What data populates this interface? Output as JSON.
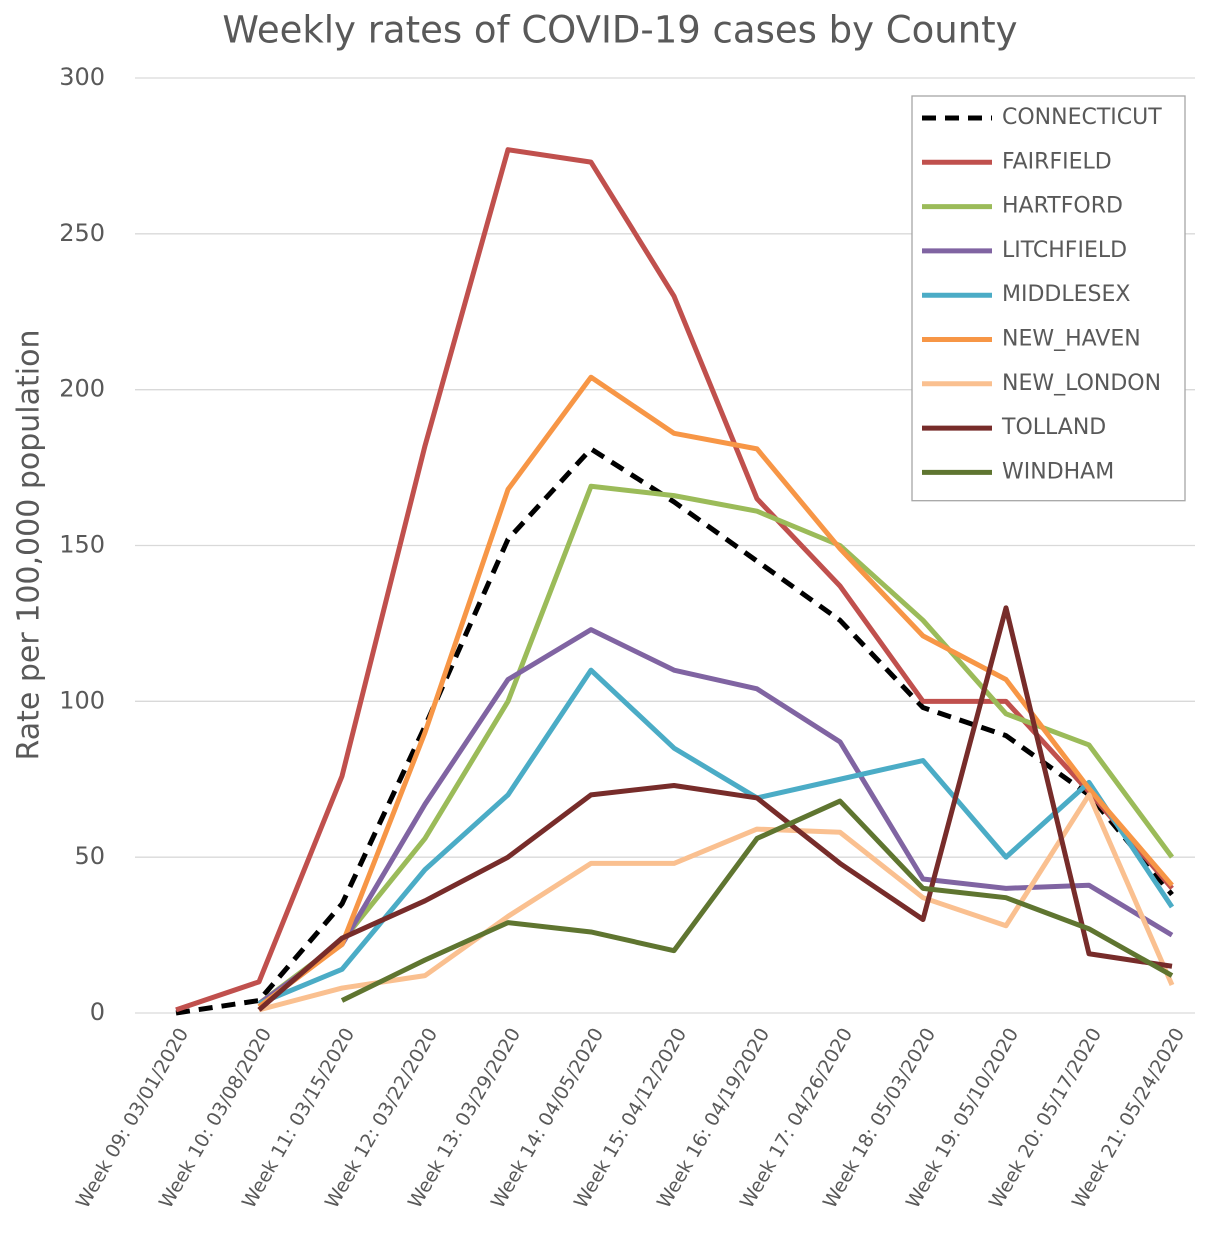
{
  "chart_data": {
    "type": "line",
    "title": "Weekly rates of COVID-19 cases by County",
    "y_label": "Rate per 100,000 population",
    "categories": [
      "Week 09: 03/01/2020",
      "Week 10: 03/08/2020",
      "Week 11: 03/15/2020",
      "Week 12: 03/22/2020",
      "Week 13: 03/29/2020",
      "Week 14: 04/05/2020",
      "Week 15: 04/12/2020",
      "Week 16: 04/19/2020",
      "Week 17: 04/26/2020",
      "Week 18: 05/03/2020",
      "Week 19: 05/10/2020",
      "Week 20: 05/17/2020",
      "Week 21: 05/24/2020"
    ],
    "series": [
      {
        "name": "CONNECTICUT",
        "color": "#000000",
        "dash": true,
        "values": [
          0,
          4,
          35,
          92,
          152,
          181,
          164,
          145,
          126,
          98,
          89,
          70,
          38
        ]
      },
      {
        "name": "FAIRFIELD",
        "color": "#c0504d",
        "values": [
          1,
          10,
          76,
          182,
          277,
          273,
          230,
          165,
          137,
          100,
          100,
          71,
          40
        ]
      },
      {
        "name": "HARTFORD",
        "color": "#9bbb59",
        "values": [
          null,
          3,
          23,
          56,
          100,
          169,
          166,
          161,
          150,
          126,
          96,
          86,
          50
        ]
      },
      {
        "name": "LITCHFIELD",
        "color": "#8064a2",
        "values": [
          null,
          3,
          22,
          67,
          107,
          123,
          110,
          104,
          87,
          43,
          40,
          41,
          25
        ]
      },
      {
        "name": "MIDDLESEX",
        "color": "#4bacc6",
        "values": [
          null,
          3,
          14,
          46,
          70,
          110,
          85,
          69,
          75,
          81,
          50,
          74,
          34
        ]
      },
      {
        "name": "NEW_HAVEN",
        "color": "#f79646",
        "values": [
          null,
          2,
          22,
          90,
          168,
          204,
          186,
          181,
          149,
          121,
          107,
          72,
          41
        ]
      },
      {
        "name": "NEW_LONDON",
        "color": "#fac090",
        "values": [
          null,
          1,
          8,
          12,
          31,
          48,
          48,
          59,
          58,
          37,
          28,
          70,
          9
        ]
      },
      {
        "name": "TOLLAND",
        "color": "#772c2a",
        "values": [
          null,
          1,
          24,
          36,
          50,
          70,
          73,
          69,
          48,
          30,
          130,
          19,
          15
        ]
      },
      {
        "name": "WINDHAM",
        "color": "#5f7530",
        "values": [
          null,
          null,
          4,
          17,
          29,
          26,
          20,
          56,
          68,
          40,
          37,
          27,
          12
        ]
      }
    ],
    "ylim": [
      0,
      300
    ],
    "yticks": [
      0,
      50,
      100,
      150,
      200,
      250,
      300
    ],
    "grid": true,
    "legend": "top-right"
  }
}
